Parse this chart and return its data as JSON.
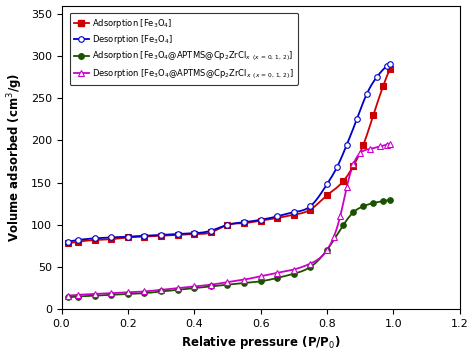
{
  "title": "",
  "xlabel": "Relative pressure (P/P$_0$)",
  "ylabel": "Volume adsorbed (cm$^3$/g)",
  "xlim": [
    0.0,
    1.2
  ],
  "ylim": [
    0,
    360
  ],
  "yticks": [
    0,
    50,
    100,
    150,
    200,
    250,
    300,
    350
  ],
  "xticks": [
    0.0,
    0.2,
    0.4,
    0.6,
    0.8,
    1.0,
    1.2
  ],
  "adsorption_fe3o4_x": [
    0.02,
    0.05,
    0.1,
    0.15,
    0.2,
    0.25,
    0.3,
    0.35,
    0.4,
    0.45,
    0.5,
    0.55,
    0.6,
    0.65,
    0.7,
    0.75,
    0.8,
    0.85,
    0.88,
    0.91,
    0.94,
    0.97,
    0.99
  ],
  "adsorption_fe3o4_y": [
    78,
    80,
    82,
    83,
    85,
    86,
    87,
    88,
    89,
    91,
    100,
    102,
    105,
    108,
    112,
    118,
    135,
    152,
    170,
    195,
    230,
    265,
    285
  ],
  "desorption_fe3o4_x": [
    0.02,
    0.05,
    0.1,
    0.15,
    0.2,
    0.25,
    0.3,
    0.35,
    0.4,
    0.45,
    0.5,
    0.55,
    0.6,
    0.65,
    0.7,
    0.75,
    0.8,
    0.83,
    0.86,
    0.89,
    0.92,
    0.95,
    0.98,
    0.99
  ],
  "desorption_fe3o4_y": [
    80,
    82,
    84,
    85,
    86,
    87,
    88,
    89,
    90,
    93,
    100,
    103,
    106,
    110,
    115,
    122,
    148,
    168,
    195,
    225,
    255,
    275,
    288,
    291
  ],
  "adsorption_comp_x": [
    0.02,
    0.05,
    0.1,
    0.15,
    0.2,
    0.25,
    0.3,
    0.35,
    0.4,
    0.45,
    0.5,
    0.55,
    0.6,
    0.65,
    0.7,
    0.75,
    0.8,
    0.85,
    0.88,
    0.91,
    0.94,
    0.97,
    0.99
  ],
  "adsorption_comp_y": [
    14,
    15,
    16,
    17,
    18,
    19,
    21,
    23,
    25,
    27,
    29,
    31,
    33,
    37,
    42,
    50,
    70,
    100,
    115,
    122,
    126,
    128,
    130
  ],
  "desorption_comp_x": [
    0.02,
    0.05,
    0.1,
    0.15,
    0.2,
    0.25,
    0.3,
    0.35,
    0.4,
    0.45,
    0.5,
    0.55,
    0.6,
    0.65,
    0.7,
    0.75,
    0.8,
    0.82,
    0.84,
    0.86,
    0.88,
    0.9,
    0.93,
    0.96,
    0.98,
    0.99
  ],
  "desorption_comp_y": [
    16,
    17,
    18,
    19,
    20,
    21,
    23,
    25,
    27,
    29,
    32,
    35,
    39,
    43,
    47,
    54,
    70,
    85,
    110,
    145,
    172,
    185,
    190,
    193,
    195,
    196
  ],
  "color_ads_fe3o4": "#cc0000",
  "color_des_fe3o4": "#0000cc",
  "color_ads_comp": "#1a5200",
  "color_des_comp": "#cc00cc",
  "figsize": [
    4.74,
    3.57
  ],
  "dpi": 100
}
